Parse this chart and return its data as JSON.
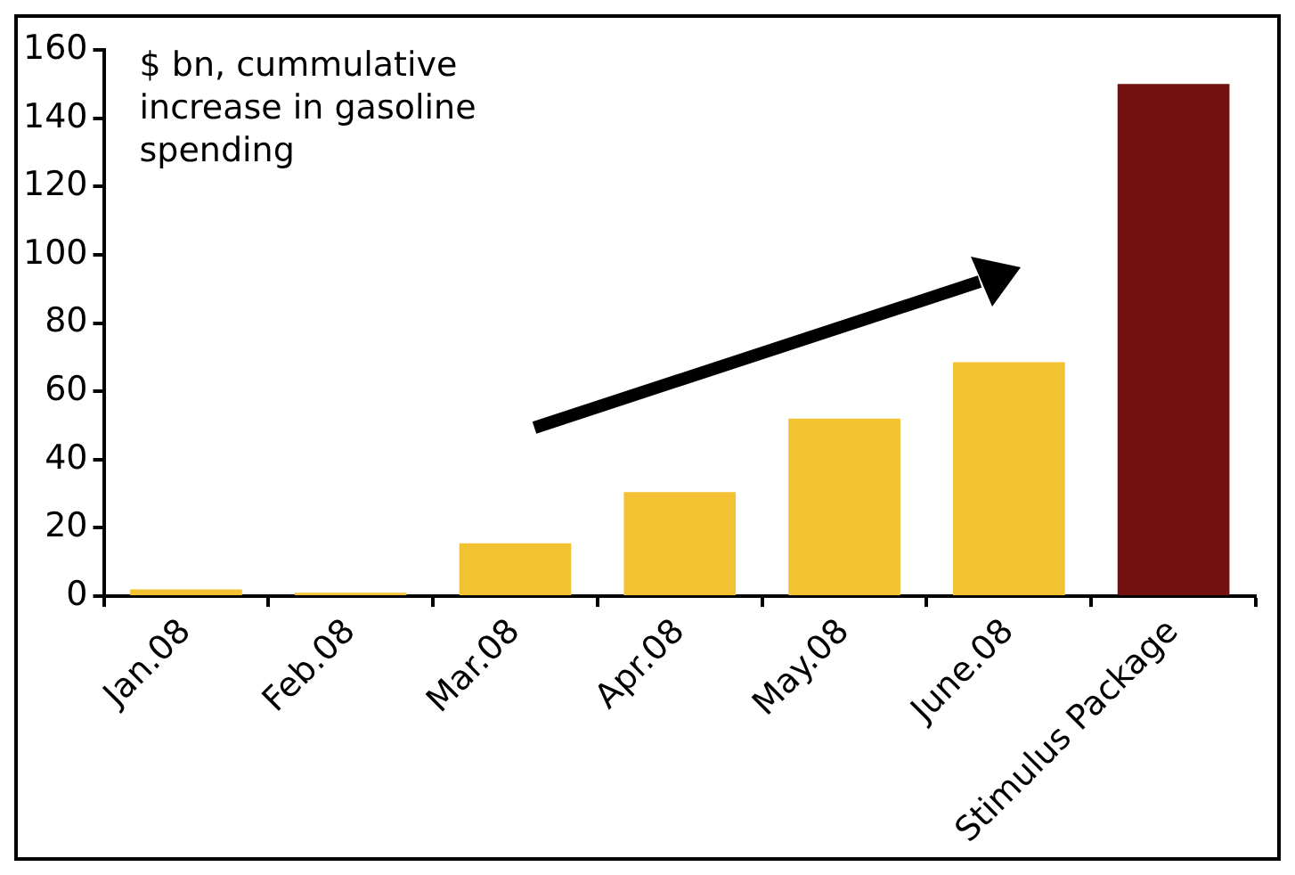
{
  "chart_data": {
    "type": "bar",
    "categories": [
      "Jan.08",
      "Feb.08",
      "Mar.08",
      "Apr.08",
      "May.08",
      "June.08",
      "Stimulus Package"
    ],
    "values": [
      2,
      1,
      15.5,
      30.5,
      52,
      68.5,
      150
    ],
    "colors": [
      "#f2c232",
      "#f2c232",
      "#f2c232",
      "#f2c232",
      "#f2c232",
      "#f2c232",
      "#731010"
    ],
    "ylim": [
      0,
      160
    ],
    "yticks": [
      0,
      20,
      40,
      60,
      80,
      100,
      120,
      140,
      160
    ],
    "grid": false,
    "legend": false,
    "annotations": [
      "$ bn, cummulative increase in gasoline spending"
    ]
  }
}
